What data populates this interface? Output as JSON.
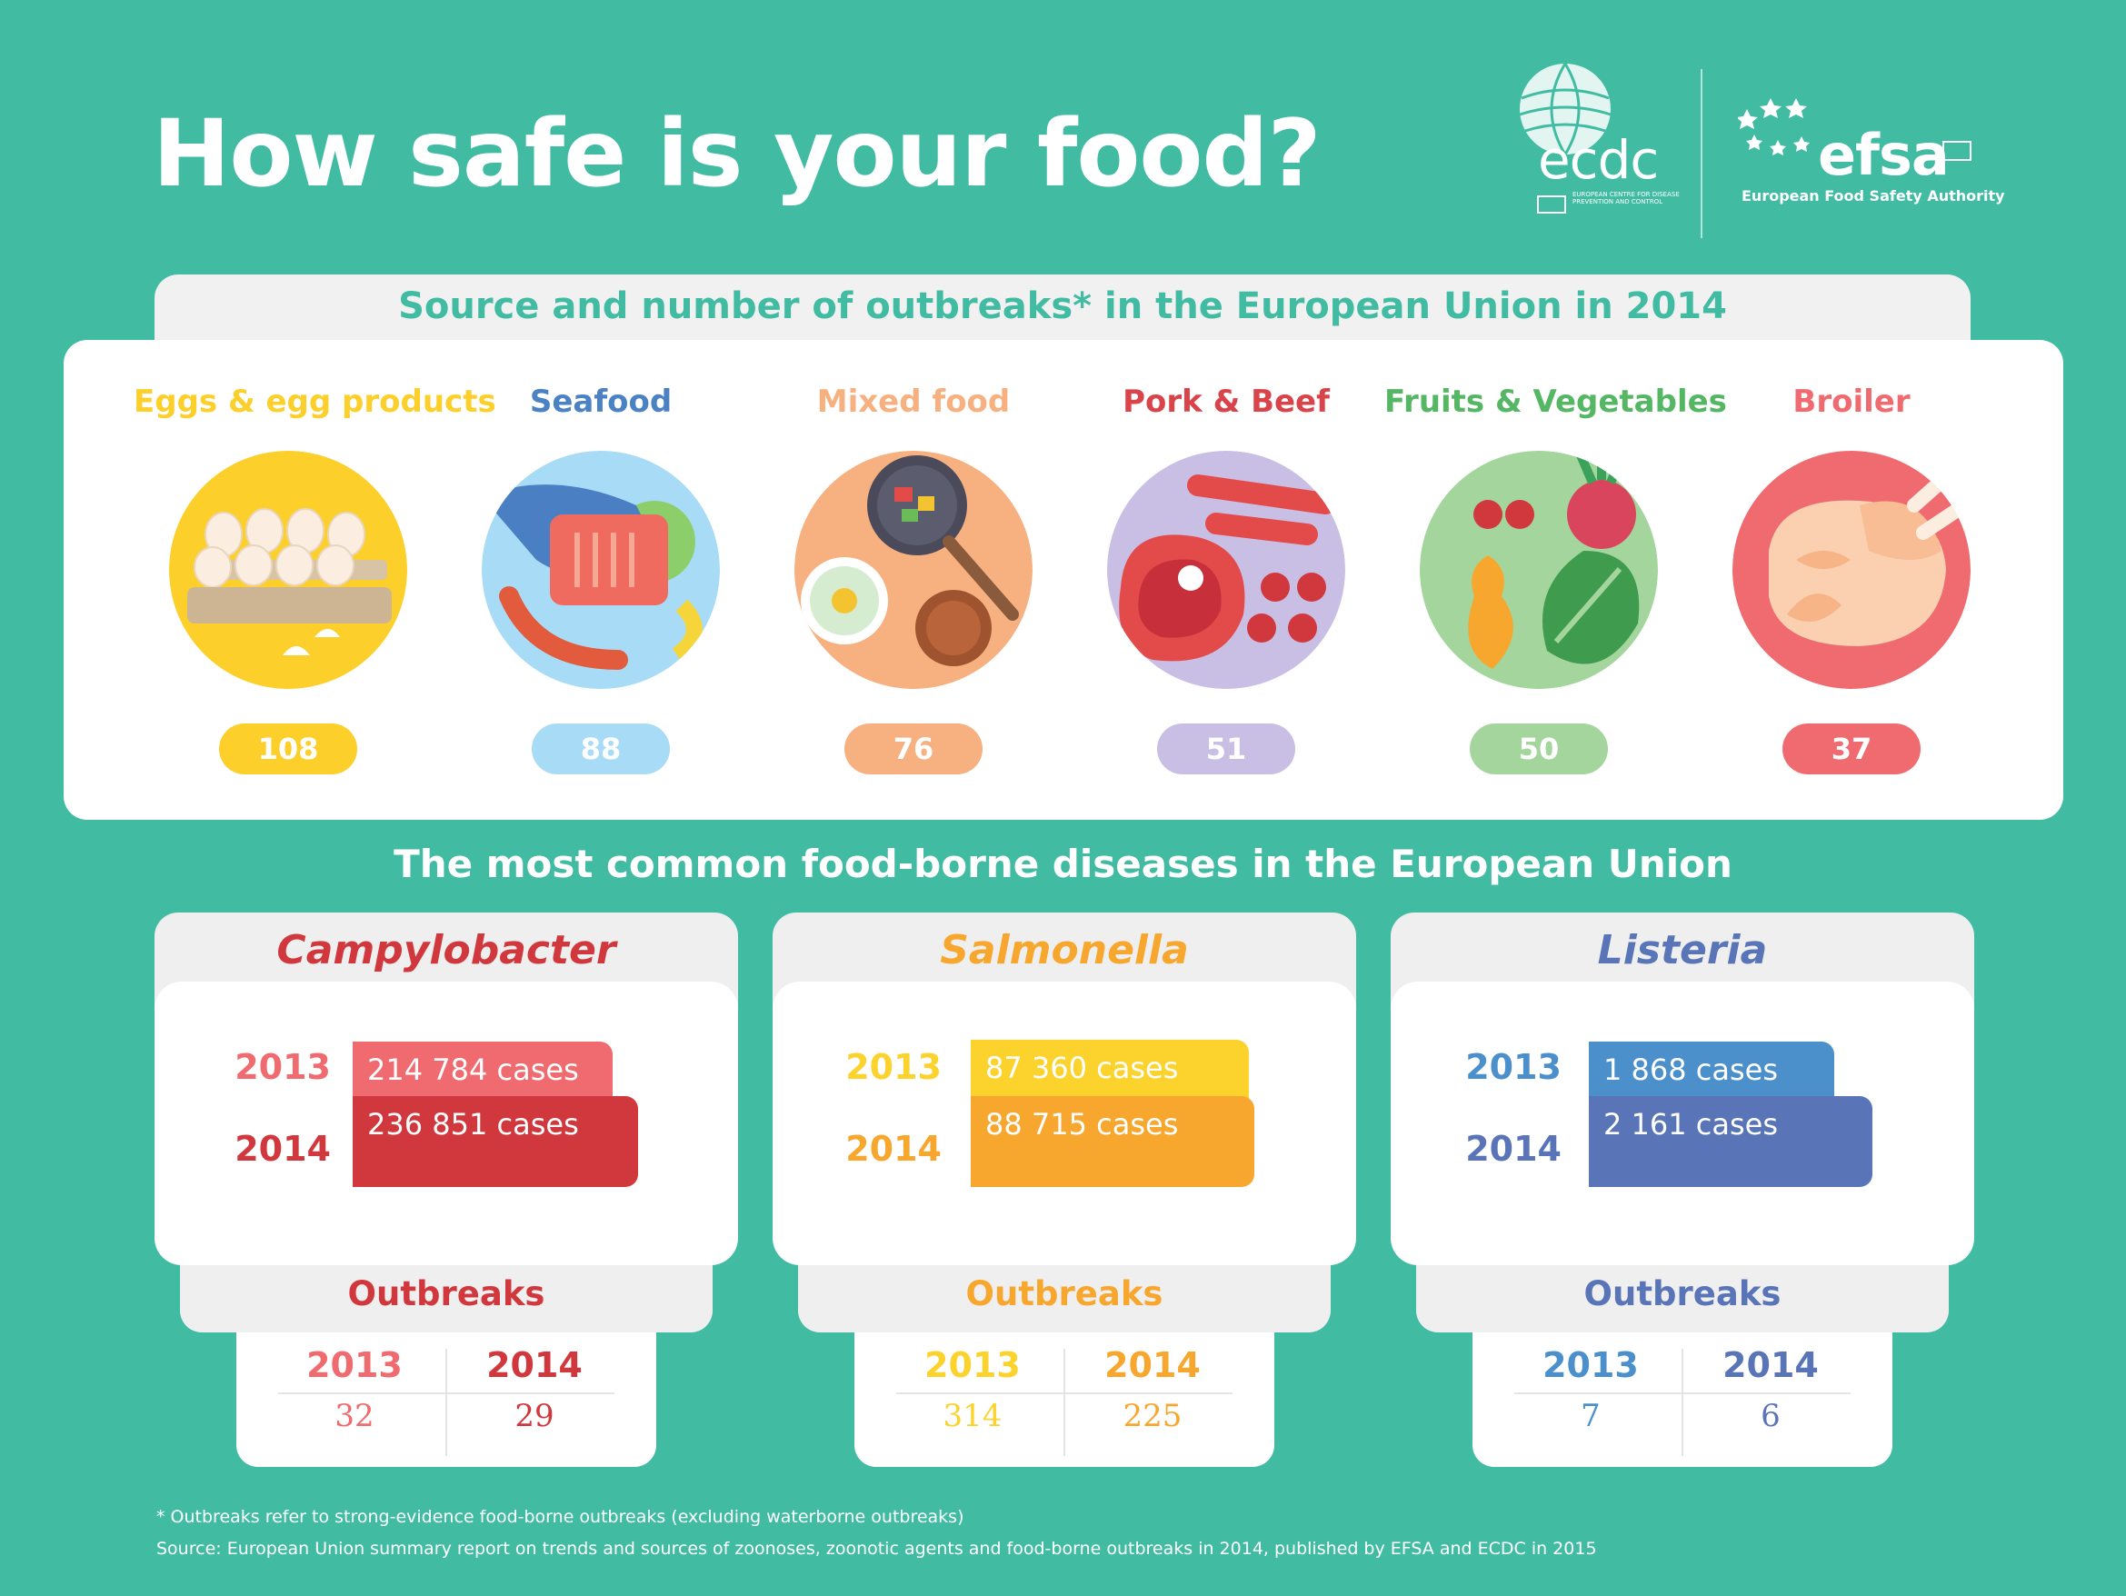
{
  "title": "How safe is your food?",
  "logos": {
    "ecdc": {
      "name": "ecdc",
      "subtitle": "EUROPEAN CENTRE FOR DISEASE PREVENTION AND CONTROL"
    },
    "efsa": {
      "name": "efsa",
      "subtitle": "European Food Safety Authority"
    }
  },
  "outbreaks": {
    "title": "Source and number of outbreaks* in the European Union in 2014",
    "sources": [
      {
        "label": "Eggs & egg products",
        "count": "108",
        "color": "#fccf2a",
        "icon": "eggs-icon"
      },
      {
        "label": "Seafood",
        "count": "88",
        "color": "#a8dcf6",
        "label_color": "#4a82c3",
        "icon": "seafood-icon"
      },
      {
        "label": "Mixed food",
        "count": "76",
        "color": "#f7b07f",
        "icon": "mixed-food-icon"
      },
      {
        "label": "Pork & Beef",
        "count": "51",
        "color": "#c9bfe4",
        "label_color": "#d9434a",
        "icon": "pork-beef-icon"
      },
      {
        "label": "Fruits & Vegetables",
        "count": "50",
        "color": "#a3d59c",
        "label_color": "#55b664",
        "icon": "fruits-vegetables-icon"
      },
      {
        "label": "Broiler",
        "count": "37",
        "color": "#ef6b6f",
        "icon": "broiler-icon"
      }
    ]
  },
  "diseases": {
    "title": "The most common food-borne diseases in the European Union",
    "outbreaks_label": "Outbreaks",
    "items": [
      {
        "name": "Campylobacter",
        "color_light": "#ef6b6f",
        "color_dark": "#d1383d",
        "cases": [
          {
            "year": "2013",
            "label": "214 784 cases",
            "value": 214784
          },
          {
            "year": "2014",
            "label": "236 851 cases",
            "value": 236851
          }
        ],
        "outbreaks": [
          {
            "year": "2013",
            "value": "32"
          },
          {
            "year": "2014",
            "value": "29"
          }
        ]
      },
      {
        "name": "Salmonella",
        "color_light": "#fcd22c",
        "color_dark": "#f8a72e",
        "cases": [
          {
            "year": "2013",
            "label": "87 360 cases",
            "value": 87360
          },
          {
            "year": "2014",
            "label": "88 715 cases",
            "value": 88715
          }
        ],
        "outbreaks": [
          {
            "year": "2013",
            "value": "314"
          },
          {
            "year": "2014",
            "value": "225"
          }
        ]
      },
      {
        "name": "Listeria",
        "color_light": "#4b8fcb",
        "color_dark": "#5975b8",
        "cases": [
          {
            "year": "2013",
            "label": "1 868 cases",
            "value": 1868
          },
          {
            "year": "2014",
            "label": "2 161 cases",
            "value": 2161
          }
        ],
        "outbreaks": [
          {
            "year": "2013",
            "value": "7"
          },
          {
            "year": "2014",
            "value": "6"
          }
        ]
      }
    ]
  },
  "footnote": "* Outbreaks refer to strong-evidence food-borne outbreaks (excluding waterborne outbreaks)",
  "source": "Source: European Union summary report on trends and sources of zoonoses, zoonotic agents and food-borne outbreaks in 2014, published by EFSA and ECDC in 2015"
}
